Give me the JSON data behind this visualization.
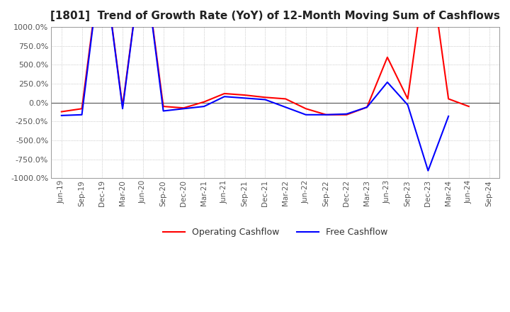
{
  "title": "[1801]  Trend of Growth Rate (YoY) of 12-Month Moving Sum of Cashflows",
  "ylim": [
    -1000,
    1000
  ],
  "yticks": [
    1000.0,
    750.0,
    500.0,
    250.0,
    0.0,
    -250.0,
    -500.0,
    -750.0,
    -1000.0
  ],
  "background_color": "#ffffff",
  "grid_color": "#aaaaaa",
  "operating_color": "#ff0000",
  "free_color": "#0000ff",
  "x_labels": [
    "Jun-19",
    "Sep-19",
    "Dec-19",
    "Mar-20",
    "Jun-20",
    "Sep-20",
    "Dec-20",
    "Mar-21",
    "Jun-21",
    "Sep-21",
    "Dec-21",
    "Mar-22",
    "Jun-22",
    "Sep-22",
    "Dec-22",
    "Mar-23",
    "Jun-23",
    "Sep-23",
    "Dec-23",
    "Mar-24",
    "Jun-24",
    "Sep-24"
  ],
  "operating_cashflow": [
    -120,
    -80,
    2000,
    -50,
    2000,
    -50,
    -70,
    10,
    120,
    100,
    70,
    50,
    -80,
    -160,
    -160,
    -60,
    600,
    50,
    2000,
    50,
    -50,
    null
  ],
  "free_cashflow": [
    -170,
    -160,
    2000,
    -80,
    2000,
    -110,
    -80,
    -50,
    80,
    60,
    40,
    -60,
    -160,
    -160,
    -150,
    -60,
    270,
    -30,
    -900,
    -180,
    null,
    null
  ]
}
